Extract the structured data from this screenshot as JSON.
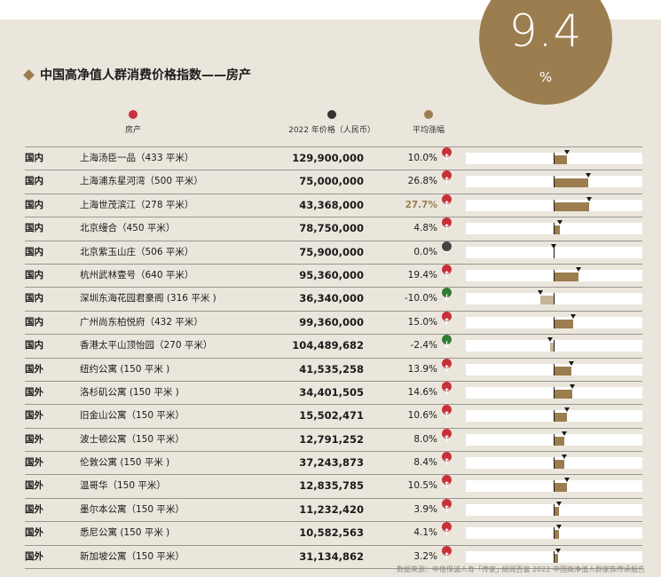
{
  "hero": {
    "value": "9.4",
    "unit": "%"
  },
  "title": "中国高净值人群消费价格指数——房产",
  "legend": [
    {
      "label": "房产",
      "color": "#c8303a"
    },
    {
      "label": "2022 年价格（人民币）",
      "color": "#333333"
    },
    {
      "label": "平均涨幅",
      "color": "#9c7d4f"
    }
  ],
  "rows": [
    {
      "region": "国内",
      "name": "上海汤臣一品（433 平米）",
      "price": "129,900,000",
      "change": "10.0%",
      "value": 10.0
    },
    {
      "region": "国内",
      "name": "上海浦东星河湾（500 平米）",
      "price": "75,000,000",
      "change": "26.8%",
      "value": 26.8
    },
    {
      "region": "国内",
      "name": "上海世茂滨江（278 平米）",
      "price": "43,368,000",
      "change": "27.7%",
      "value": 27.7,
      "highlight": true
    },
    {
      "region": "国内",
      "name": "北京缦合（450 平米）",
      "price": "78,750,000",
      "change": "4.8%",
      "value": 4.8
    },
    {
      "region": "国内",
      "name": "北京紫玉山庄（506 平米）",
      "price": "75,900,000",
      "change": "0.0%",
      "value": 0.0
    },
    {
      "region": "国内",
      "name": "杭州武林壹号（640 平米）",
      "price": "95,360,000",
      "change": "19.4%",
      "value": 19.4
    },
    {
      "region": "国内",
      "name": "深圳东海花园君豪阁 (316 平米 )",
      "price": "36,340,000",
      "change": "-10.0%",
      "value": -10.0
    },
    {
      "region": "国内",
      "name": "广州尚东柏悦府（432 平米）",
      "price": "99,360,000",
      "change": "15.0%",
      "value": 15.0
    },
    {
      "region": "国内",
      "name": "香港太平山顶怡园（270 平米）",
      "price": "104,489,682",
      "change": "-2.4%",
      "value": -2.4
    },
    {
      "region": "国外",
      "name": "纽约公寓 (150 平米 )",
      "price": "41,535,258",
      "change": "13.9%",
      "value": 13.9
    },
    {
      "region": "国外",
      "name": "洛杉矶公寓 (150 平米 )",
      "price": "34,401,505",
      "change": "14.6%",
      "value": 14.6
    },
    {
      "region": "国外",
      "name": "旧金山公寓（150 平米）",
      "price": "15,502,471",
      "change": "10.6%",
      "value": 10.6
    },
    {
      "region": "国外",
      "name": "波士顿公寓（150 平米）",
      "price": "12,791,252",
      "change": "8.0%",
      "value": 8.0
    },
    {
      "region": "国外",
      "name": "伦敦公寓 (150 平米 )",
      "price": "37,243,873",
      "change": "8.4%",
      "value": 8.4
    },
    {
      "region": "国外",
      "name": "温哥华（150 平米）",
      "price": "12,835,785",
      "change": "10.5%",
      "value": 10.5
    },
    {
      "region": "国外",
      "name": "墨尔本公寓（150 平米）",
      "price": "11,232,420",
      "change": "3.9%",
      "value": 3.9
    },
    {
      "region": "国外",
      "name": "悉尼公寓 (150 平米 )",
      "price": "10,582,563",
      "change": "4.1%",
      "value": 4.1
    },
    {
      "region": "国外",
      "name": "新加坡公寓（150 平米）",
      "price": "31,134,862",
      "change": "3.2%",
      "value": 3.2
    }
  ],
  "source": "数据来源：中信保诚人寿「传家」·胡润百富 2022 中国高净值人群家族传承报告",
  "colors": {
    "accent": "#9c7d4f",
    "up": "#c8303a",
    "down": "#2e7d32",
    "flat": "#444444"
  }
}
